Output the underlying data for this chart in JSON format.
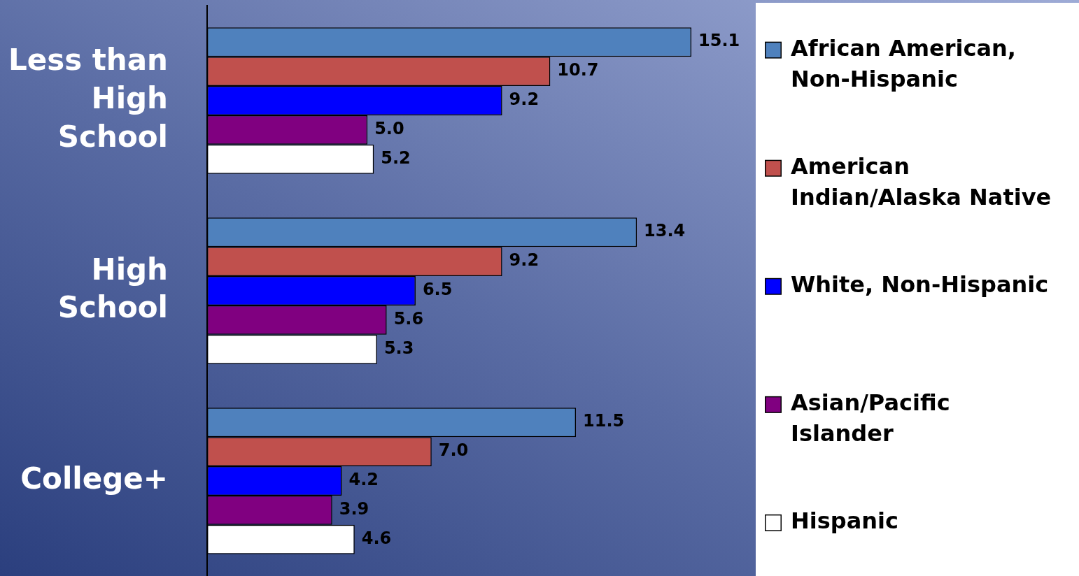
{
  "chart_data": {
    "type": "bar",
    "orientation": "horizontal",
    "categories": [
      "Less than High School",
      "High School",
      "College+"
    ],
    "series": [
      {
        "name": "African American, Non-Hispanic",
        "color": "#4f81bd",
        "values": [
          15.1,
          13.4,
          11.5
        ],
        "value_labels": [
          "15.1",
          "13.4",
          "11.5"
        ]
      },
      {
        "name": "American Indian/Alaska Native",
        "color": "#c0504d",
        "values": [
          10.7,
          9.2,
          7.0
        ],
        "value_labels": [
          "10.7",
          "9.2",
          "7.0"
        ]
      },
      {
        "name": "White, Non-Hispanic",
        "color": "#0000ff",
        "values": [
          9.2,
          6.5,
          4.2
        ],
        "value_labels": [
          "9.2",
          "6.5",
          "4.2"
        ]
      },
      {
        "name": "Asian/Pacific Islander",
        "color": "#800080",
        "values": [
          5.0,
          5.6,
          3.9
        ],
        "value_labels": [
          "5.0",
          "5.6",
          "3.9"
        ]
      },
      {
        "name": "Hispanic",
        "color": "#ffffff",
        "values": [
          5.2,
          5.3,
          4.6
        ],
        "value_labels": [
          "5.2",
          "5.3",
          "4.6"
        ]
      }
    ],
    "legend": "right",
    "tick_labels": "y"
  }
}
